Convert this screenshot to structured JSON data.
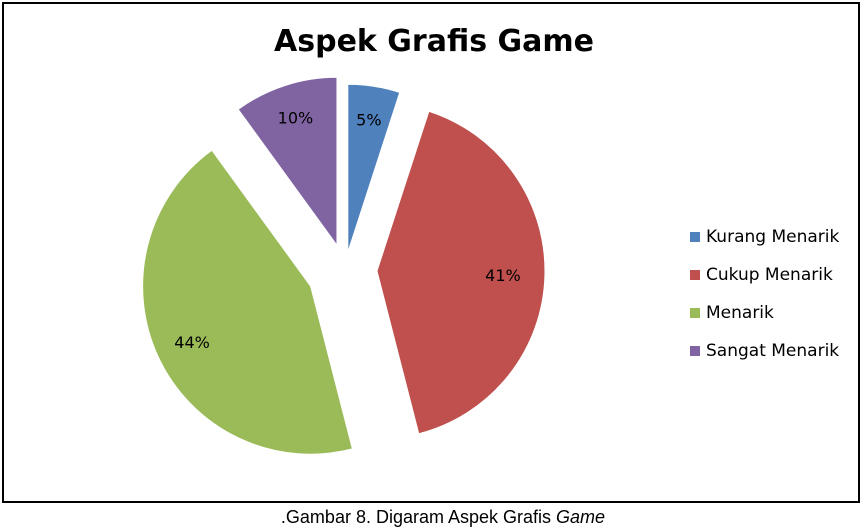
{
  "chart_data": {
    "type": "pie",
    "title": "Aspek Grafis Game",
    "categories": [
      "Kurang Menarik",
      "Cukup Menarik",
      "Menarik",
      "Sangat Menarik"
    ],
    "values": [
      5,
      41,
      44,
      10
    ],
    "labels": [
      "5%",
      "41%",
      "44%",
      "10%"
    ],
    "colors": [
      "#4f81bd",
      "#c0504d",
      "#9bbb59",
      "#8064a2"
    ],
    "exploded": true,
    "legend_position": "right"
  },
  "caption": {
    "prefix": ".Gambar 8. Digaram Aspek Grafis ",
    "italic": "Game"
  }
}
